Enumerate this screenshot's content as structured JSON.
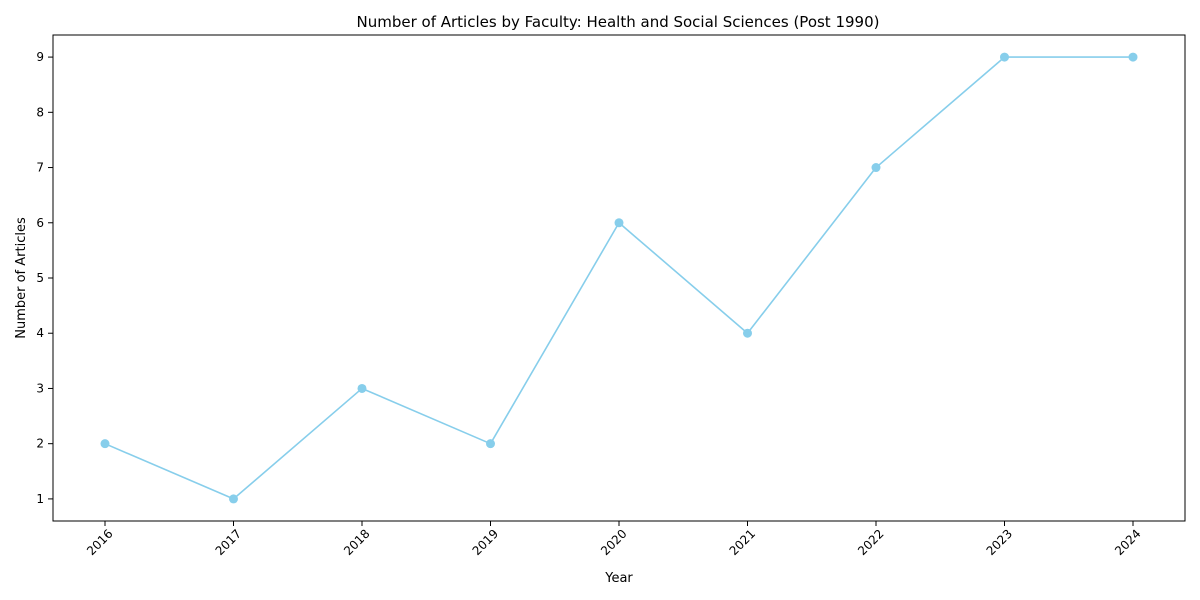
{
  "chart_data": {
    "type": "line",
    "title": "Number of Articles by Faculty: Health and Social Sciences (Post 1990)",
    "xlabel": "Year",
    "ylabel": "Number of Articles",
    "x": [
      "2016",
      "2017",
      "2018",
      "2019",
      "2020",
      "2021",
      "2022",
      "2023",
      "2024"
    ],
    "series": [
      {
        "values": [
          2,
          1,
          3,
          2,
          6,
          4,
          7,
          9,
          9
        ]
      }
    ],
    "yticks": [
      1,
      2,
      3,
      4,
      5,
      6,
      7,
      8,
      9
    ],
    "ylim": [
      0.6,
      9.4
    ],
    "grid": false,
    "line_color": "#87ceeb",
    "marker": "circle"
  }
}
